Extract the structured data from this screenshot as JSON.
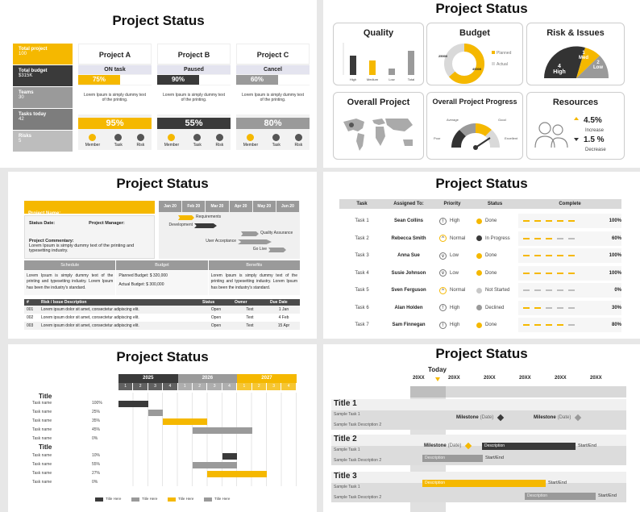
{
  "title": "Project Status",
  "s1": {
    "side": [
      {
        "label": "Total project",
        "value": "100"
      },
      {
        "label": "Total budget",
        "value": "$315K"
      },
      {
        "label": "Teams",
        "value": "30"
      },
      {
        "label": "Tasks today",
        "value": "42"
      },
      {
        "label": "Risks",
        "value": "5"
      }
    ],
    "projects": [
      {
        "name": "Project A",
        "status": "ON task",
        "pct": "75%",
        "desc": "Lorem Ipsum is simply dummy text of the printing.",
        "big": "95%"
      },
      {
        "name": "Project B",
        "status": "Paused",
        "pct": "90%",
        "desc": "Lorem Ipsum is simply dummy text of the printing.",
        "big": "55%"
      },
      {
        "name": "Project  C",
        "status": "Cancel",
        "pct": "60%",
        "desc": "Lorem Ipsum is simply dummy text of the printing.",
        "big": "80%"
      }
    ],
    "icons": [
      "Member",
      "Task",
      "Risk"
    ]
  },
  "s2": {
    "quality": {
      "title": "Quality",
      "bars": [
        {
          "label": "High",
          "value": 0.6,
          "color": "#3a3a3a"
        },
        {
          "label": "Medium",
          "value": 0.45,
          "color": "#f5b800"
        },
        {
          "label": "Low",
          "value": 0.2,
          "color": "#9a9a9a"
        },
        {
          "label": "Total",
          "value": 0.75,
          "color": "#9a9a9a"
        }
      ]
    },
    "budget": {
      "title": "Budget",
      "left": "25000",
      "right": "45000",
      "legend": [
        "Planned",
        "Actual"
      ]
    },
    "risk": {
      "title": "Risk & Issues",
      "items": [
        {
          "n": "4",
          "l": "High"
        },
        {
          "n": "1",
          "l": "Med"
        },
        {
          "n": "2",
          "l": "Low"
        }
      ]
    },
    "overall": {
      "title": "Overall Project"
    },
    "progress": {
      "title": "Overall Project Progress",
      "labels": [
        "Poor",
        "Average",
        "Good",
        "Excellent"
      ]
    },
    "resources": {
      "title": "Resources",
      "up": "4.5%",
      "upl": "Increase",
      "down": "1.5 %",
      "downl": "Decrease"
    }
  },
  "s3": {
    "name": "Project Name:",
    "date": "Status Date:",
    "mgr": "Project Manager:",
    "comment_label": "Project Commentary:",
    "comment": "Lorem Ipsum is simply dummy text of the printing and typesetting industry.",
    "months": [
      "Jan 20",
      "Feb 20",
      "Mar 20",
      "Apr 20",
      "May 20",
      "Jun 20"
    ],
    "gantt": [
      "Requirements",
      "Development",
      "Quality Assurance",
      "User Acceptance",
      "Go Live"
    ],
    "cols": [
      "Schedule",
      "Budget",
      "Benefits"
    ],
    "schedule": "Lorem Ipsum is simply dummy text of the printing and typesetting industry. Lorem Ipsum has been the industry's standard.",
    "planned": "Planned Budget: $ 320,000",
    "actual": "Actual Budget: $ 300,000",
    "benefits": "Lorem Ipsum is simply dummy text of the printing and typesetting industry. Lorem Ipsum has been the industry's standard.",
    "th": [
      "#",
      "Risk / Issue Description",
      "Status",
      "Owner",
      "Due Date"
    ],
    "rows": [
      [
        "001",
        "Lorem ipsum dolor sit amet, consectetur adipiscing elit.",
        "Open",
        "Text",
        "1 Jan"
      ],
      [
        "002",
        "Lorem ipsum dolor sit amet, consectetur adipiscing elit.",
        "Open",
        "Text",
        "4 Feb"
      ],
      [
        "003",
        "Lorem ipsum dolor sit amet, consectetur adipiscing elit.",
        "Open",
        "Text",
        "15 Apr"
      ]
    ]
  },
  "s4": {
    "th": [
      "Task",
      "Assigned To:",
      "Priority",
      "Status",
      "Complete"
    ],
    "rows": [
      {
        "task": "Task 1",
        "who": "Sean Collins",
        "pri": "High",
        "status": "Done",
        "sc": "#f5b800",
        "pct": "100%",
        "fill": 1.0
      },
      {
        "task": "Task 2",
        "who": "Rebecca Smith",
        "pri": "Normal",
        "status": "In Progress",
        "sc": "#3a3a3a",
        "pct": "60%",
        "fill": 0.6
      },
      {
        "task": "Task 3",
        "who": "Anna Sue",
        "pri": "Low",
        "status": "Done",
        "sc": "#f5b800",
        "pct": "100%",
        "fill": 1.0
      },
      {
        "task": "Task 4",
        "who": "Susie Johnson",
        "pri": "Low",
        "status": "Done",
        "sc": "#f5b800",
        "pct": "100%",
        "fill": 1.0
      },
      {
        "task": "Task 5",
        "who": "Sven Ferguson",
        "pri": "Normal",
        "status": "Not Started",
        "sc": "#c8c8c8",
        "pct": "0%",
        "fill": 0.0
      },
      {
        "task": "Task 6",
        "who": "Alan Holden",
        "pri": "High",
        "status": "Declined",
        "sc": "#9a9a9a",
        "pct": "30%",
        "fill": 0.3
      },
      {
        "task": "Task 7",
        "who": "Sam Finnegan",
        "pri": "High",
        "status": "Done",
        "sc": "#f5b800",
        "pct": "80%",
        "fill": 0.8
      }
    ]
  },
  "s5": {
    "years": [
      "2025",
      "2026",
      "2027"
    ],
    "q": [
      "1",
      "2",
      "3",
      "4"
    ],
    "g1": "Title",
    "g2": "Title",
    "rows1": [
      {
        "n": "Task name",
        "p": "100%"
      },
      {
        "n": "Task name",
        "p": "25%"
      },
      {
        "n": "Task name",
        "p": "35%"
      },
      {
        "n": "Task name",
        "p": "45%"
      },
      {
        "n": "Task name",
        "p": "0%"
      }
    ],
    "rows2": [
      {
        "n": "Task name",
        "p": "10%"
      },
      {
        "n": "Task name",
        "p": "55%"
      },
      {
        "n": "Task name",
        "p": "27%"
      },
      {
        "n": "Task name",
        "p": "0%"
      }
    ],
    "legend": [
      "Title Here",
      "Title Here",
      "Title Here",
      "Title Here"
    ]
  },
  "s6": {
    "today": "Today",
    "years": [
      "20XX",
      "20XX",
      "20XX",
      "20XX",
      "20XX",
      "20XX"
    ],
    "t1": "Title 1",
    "t2": "Title 2",
    "t3": "Title 3",
    "sub1": "Sample Task 1",
    "sub2": "Sample Task Description 2",
    "ms": "Milestone",
    "date": "(Date)",
    "desc": "Description",
    "se": "Start/End"
  }
}
